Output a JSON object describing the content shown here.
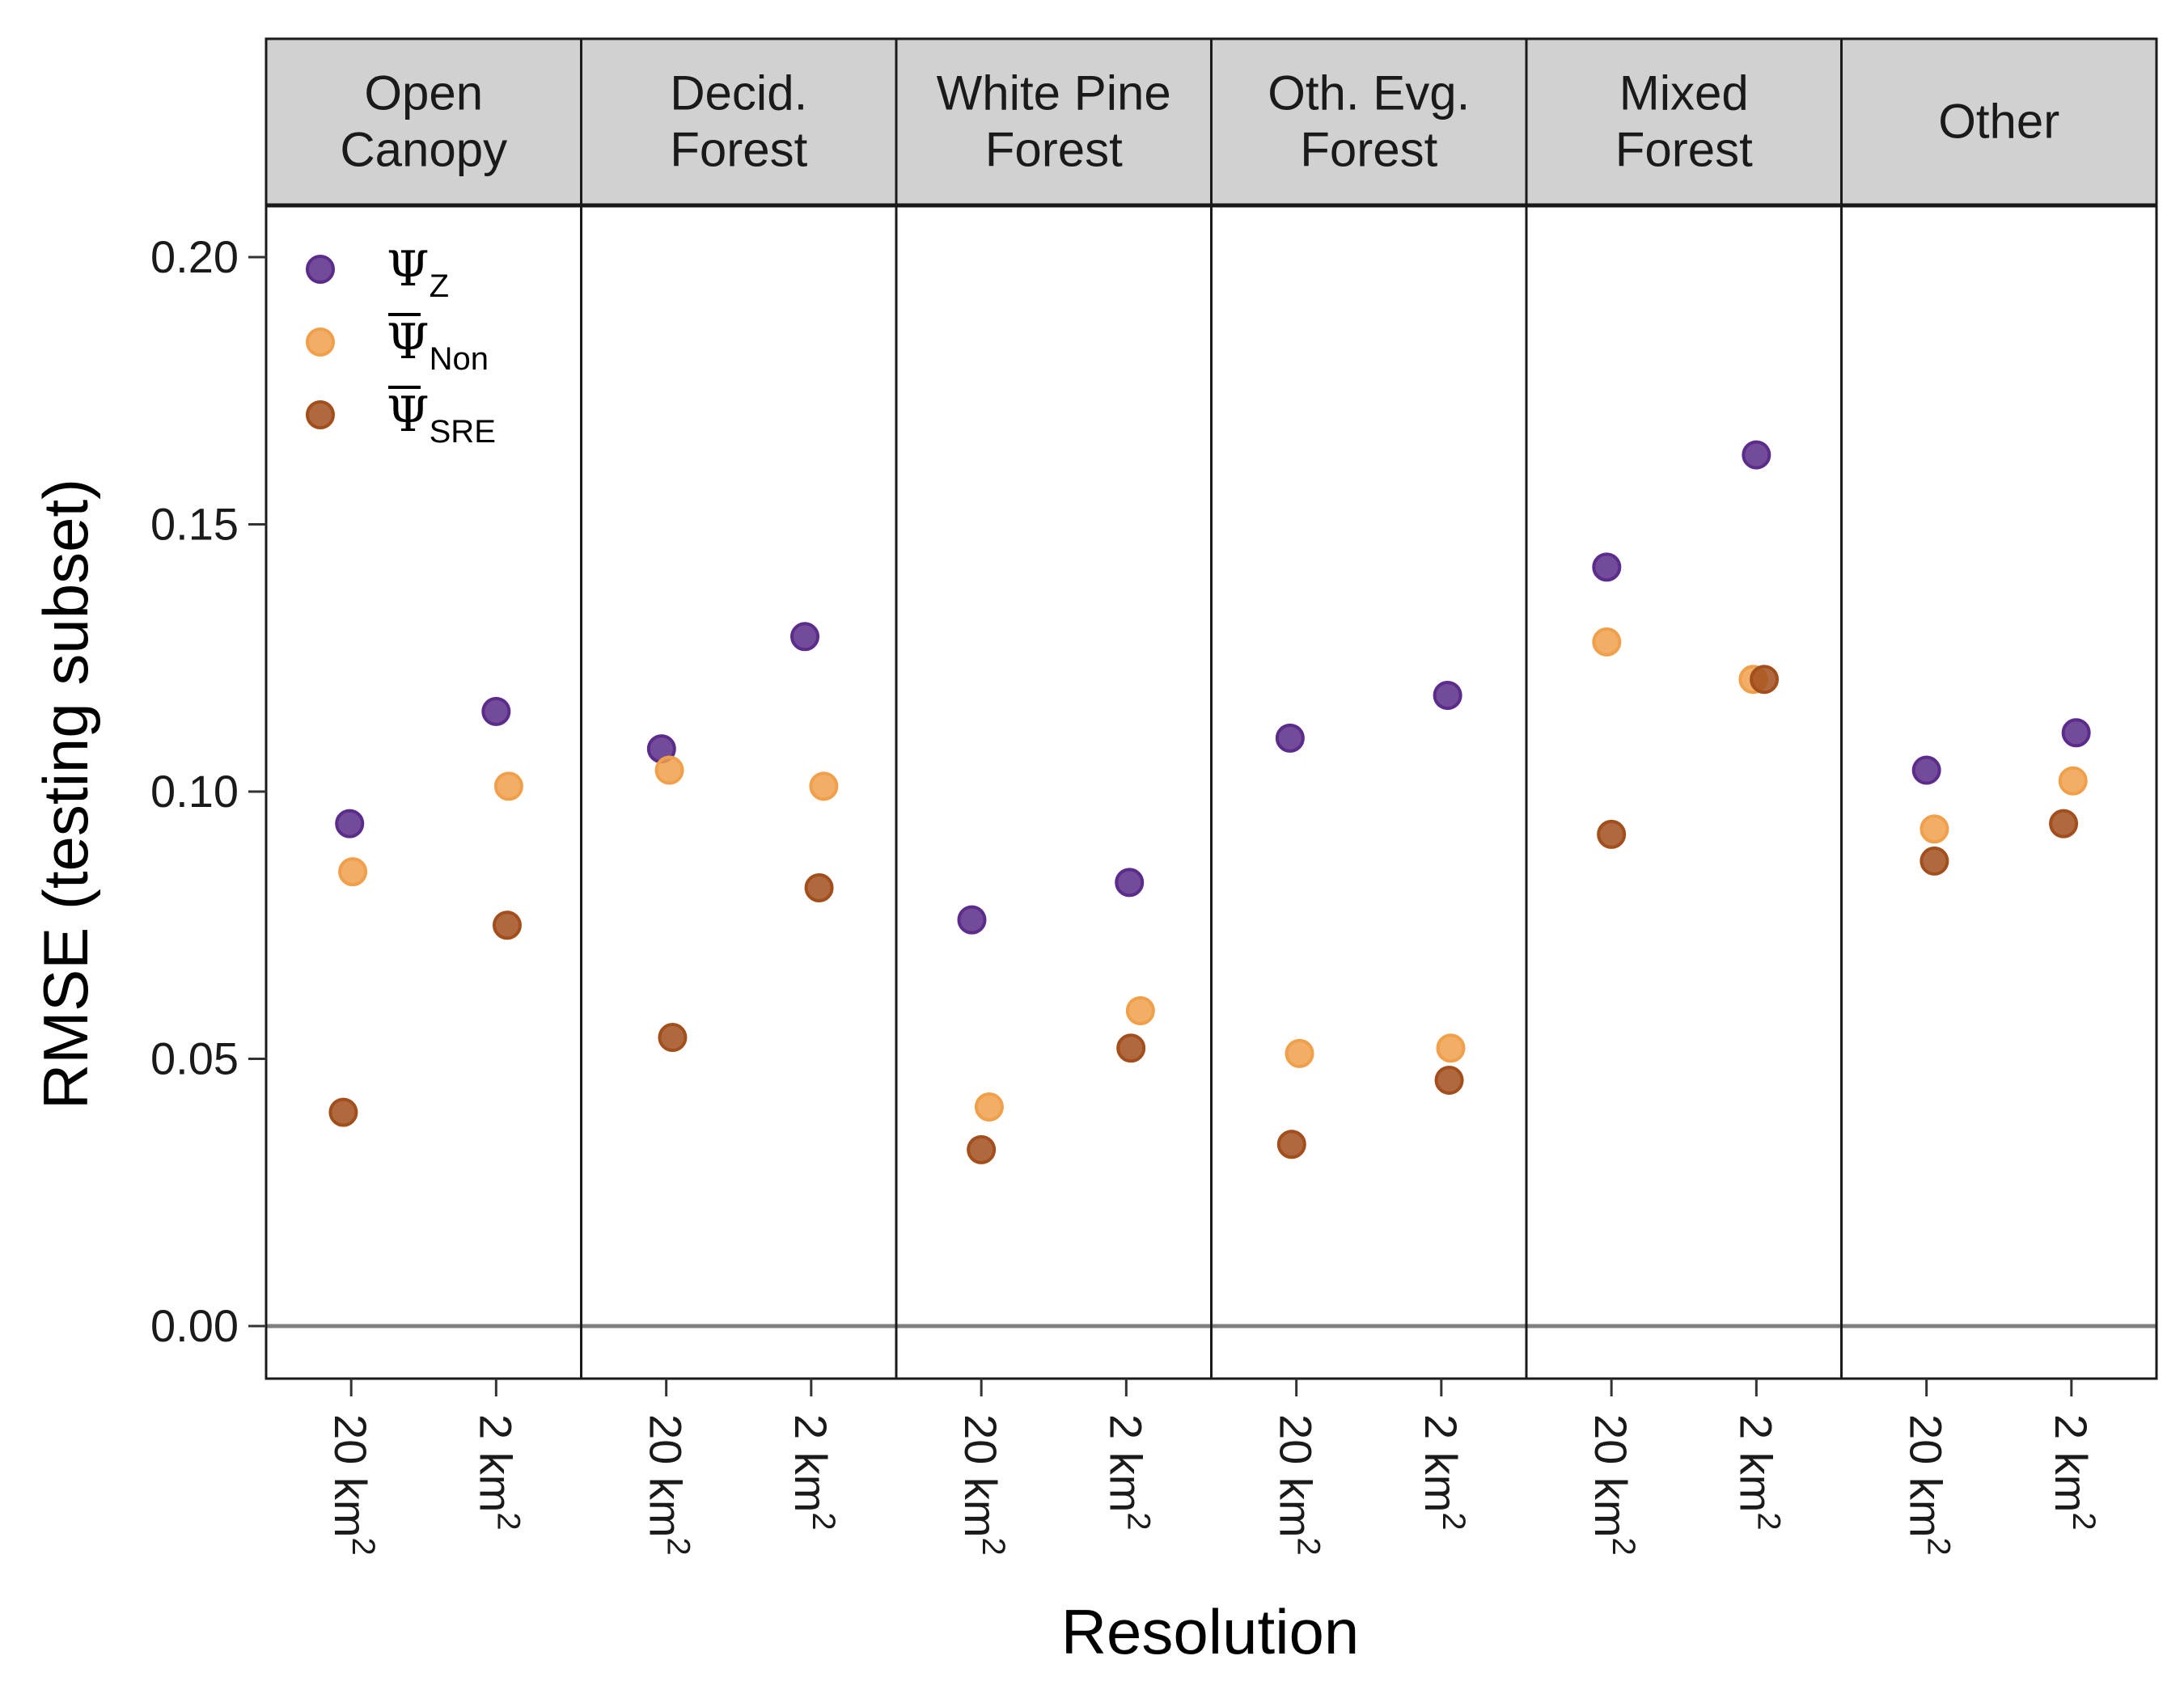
{
  "chart_data": {
    "type": "scatter",
    "ylabel": "RMSE (testing subset)",
    "xlabel": "Resolution",
    "ylim": [
      -0.01,
      0.21
    ],
    "yticks": [
      "0.00",
      "0.05",
      "0.10",
      "0.15",
      "0.20"
    ],
    "categories": [
      "20 km2",
      "2 km2"
    ],
    "x_tick_labels": [
      {
        "base": "20 km",
        "sup": "2"
      },
      {
        "base": "2 km",
        "sup": "2"
      }
    ],
    "reference_line": 0,
    "legend_position": "top-left",
    "facets": [
      {
        "label_lines": [
          "Open",
          "Canopy"
        ]
      },
      {
        "label_lines": [
          "Decid.",
          "Forest"
        ]
      },
      {
        "label_lines": [
          "White Pine",
          "Forest"
        ]
      },
      {
        "label_lines": [
          "Oth. Evg.",
          "Forest"
        ]
      },
      {
        "label_lines": [
          "Mixed",
          "Forest"
        ]
      },
      {
        "label_lines": [
          "Other"
        ]
      }
    ],
    "series": [
      {
        "name": "ΨZ",
        "symbol": "Ψ",
        "subscript": "Z",
        "overline": false,
        "color": "#5b2c8a",
        "values": [
          [
            0.094,
            0.115
          ],
          [
            0.108,
            0.129
          ],
          [
            0.076,
            0.083
          ],
          [
            0.11,
            0.118
          ],
          [
            0.142,
            0.163
          ],
          [
            0.104,
            0.111
          ]
        ]
      },
      {
        "name": "ΨNon",
        "symbol": "Ψ",
        "subscript": "Non",
        "overline": true,
        "color": "#f0a04b",
        "values": [
          [
            0.085,
            0.101
          ],
          [
            0.104,
            0.101
          ],
          [
            0.041,
            0.059
          ],
          [
            0.051,
            0.052
          ],
          [
            0.128,
            0.121
          ],
          [
            0.093,
            0.102
          ]
        ]
      },
      {
        "name": "ΨSRE",
        "symbol": "Ψ",
        "subscript": "SRE",
        "overline": true,
        "color": "#a24f1d",
        "values": [
          [
            0.04,
            0.075
          ],
          [
            0.054,
            0.082
          ],
          [
            0.033,
            0.052
          ],
          [
            0.034,
            0.046
          ],
          [
            0.092,
            0.121
          ],
          [
            0.087,
            0.094
          ]
        ]
      }
    ],
    "jitter": [
      [
        [
          -0.01,
          0.0
        ],
        [
          -0.03,
          -0.04
        ],
        [
          -0.06,
          0.02
        ],
        [
          -0.04,
          0.04
        ],
        [
          -0.03,
          0.0
        ],
        [
          0.0,
          0.03
        ]
      ],
      [
        [
          0.01,
          0.08
        ],
        [
          0.02,
          0.08
        ],
        [
          0.05,
          0.09
        ],
        [
          0.02,
          0.06
        ],
        [
          -0.03,
          -0.02
        ],
        [
          0.05,
          0.01
        ]
      ],
      [
        [
          -0.05,
          0.07
        ],
        [
          0.04,
          0.05
        ],
        [
          0.0,
          0.03
        ],
        [
          -0.03,
          0.05
        ],
        [
          0.0,
          0.05
        ],
        [
          0.05,
          -0.05
        ]
      ]
    ]
  }
}
